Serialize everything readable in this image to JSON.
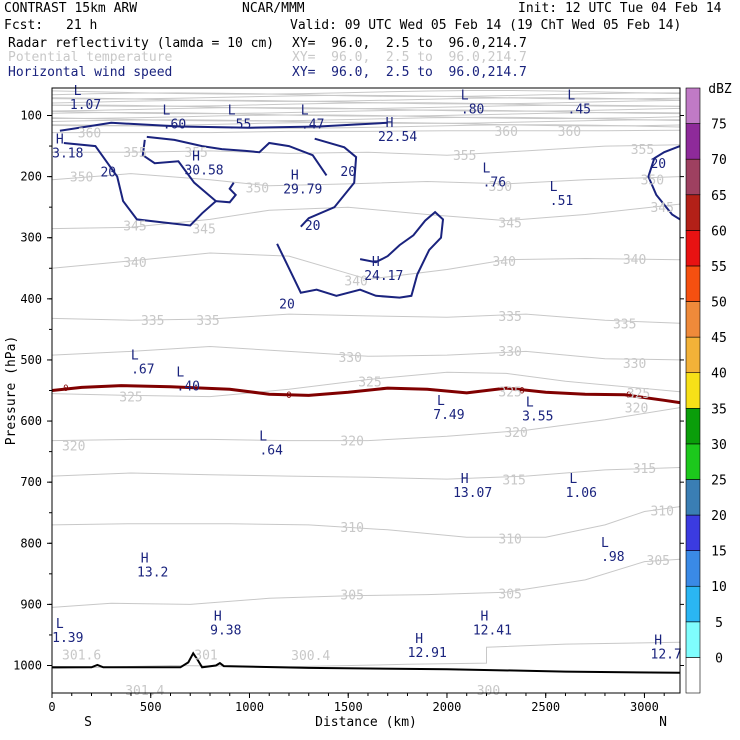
{
  "header": {
    "title": "CONTRAST 15km ARW",
    "org": "NCAR/MMM",
    "init": "Init: 12 UTC Tue 04 Feb 14",
    "fcst_label": "Fcst:",
    "fcst_value": "21 h",
    "valid": "Valid: 09 UTC Wed 05 Feb 14 (19 ChT Wed 05 Feb 14)",
    "fields": [
      {
        "name": "Radar reflectivity (lamda = 10 cm)",
        "xy": "XY=  96.0,  2.5 to  96.0,214.7",
        "color": "#000000"
      },
      {
        "name": "Potential temperature",
        "xy": "XY=  96.0,  2.5 to  96.0,214.7",
        "color": "#c8c8c8"
      },
      {
        "name": "Horizontal wind speed",
        "xy": "XY=  96.0,  2.5 to  96.0,214.7",
        "color": "#1a237e"
      }
    ]
  },
  "chart_data": {
    "type": "contour",
    "xlabel": "Distance (km)",
    "ylabel": "Pressure (hPa)",
    "xlim": [
      0,
      3180
    ],
    "ylim": [
      1045,
      55
    ],
    "x_ticks": [
      0,
      500,
      1000,
      1500,
      2000,
      2500,
      3000
    ],
    "y_ticks": [
      100,
      200,
      300,
      400,
      500,
      600,
      700,
      800,
      900,
      1000
    ],
    "x_end_labels": {
      "left": "S",
      "right": "N"
    },
    "colorbar": {
      "unit": "dBZ",
      "levels": [
        0,
        5,
        10,
        15,
        20,
        25,
        30,
        35,
        40,
        45,
        50,
        55,
        60,
        65,
        70,
        75
      ],
      "colors": [
        "#ffffff",
        "#7ffdfd",
        "#2ab6f3",
        "#3a8ae6",
        "#3b3be0",
        "#3a7eb4",
        "#1cc81c",
        "#0a9e0a",
        "#f7e018",
        "#f3b238",
        "#ef8a3a",
        "#f55010",
        "#e81212",
        "#b32018",
        "#9e4060",
        "#8e2a9a",
        "#c07ac6"
      ]
    },
    "theta_contours": {
      "levels": [
        300,
        305,
        310,
        315,
        320,
        325,
        330,
        335,
        340,
        345,
        350,
        355,
        360
      ],
      "color": "#c8c8c8",
      "labels": [
        {
          "v": "360",
          "x": 190,
          "p": 128
        },
        {
          "v": "360",
          "x": 2300,
          "p": 125
        },
        {
          "v": "360",
          "x": 2620,
          "p": 125
        },
        {
          "v": "355",
          "x": 420,
          "p": 160
        },
        {
          "v": "355",
          "x": 730,
          "p": 160
        },
        {
          "v": "355",
          "x": 2090,
          "p": 165
        },
        {
          "v": "355",
          "x": 2990,
          "p": 155
        },
        {
          "v": "350",
          "x": 150,
          "p": 200
        },
        {
          "v": "350",
          "x": 1040,
          "p": 218
        },
        {
          "v": "350",
          "x": 2270,
          "p": 215
        },
        {
          "v": "350",
          "x": 3040,
          "p": 205
        },
        {
          "v": "345",
          "x": 420,
          "p": 280
        },
        {
          "v": "345",
          "x": 770,
          "p": 285
        },
        {
          "v": "345",
          "x": 2320,
          "p": 275
        },
        {
          "v": "345",
          "x": 3090,
          "p": 250
        },
        {
          "v": "340",
          "x": 420,
          "p": 340
        },
        {
          "v": "340",
          "x": 1540,
          "p": 370
        },
        {
          "v": "340",
          "x": 2290,
          "p": 338
        },
        {
          "v": "340",
          "x": 2950,
          "p": 335
        },
        {
          "v": "335",
          "x": 510,
          "p": 435
        },
        {
          "v": "335",
          "x": 790,
          "p": 435
        },
        {
          "v": "335",
          "x": 2320,
          "p": 428
        },
        {
          "v": "335",
          "x": 2900,
          "p": 440
        },
        {
          "v": "330",
          "x": 1510,
          "p": 495
        },
        {
          "v": "330",
          "x": 2320,
          "p": 485
        },
        {
          "v": "330",
          "x": 2950,
          "p": 505
        },
        {
          "v": "325",
          "x": 1610,
          "p": 535
        },
        {
          "v": "325",
          "x": 2320,
          "p": 552
        },
        {
          "v": "325",
          "x": 2970,
          "p": 554
        },
        {
          "v": "325",
          "x": 400,
          "p": 560
        },
        {
          "v": "320",
          "x": 110,
          "p": 640
        },
        {
          "v": "320",
          "x": 1520,
          "p": 632
        },
        {
          "v": "320",
          "x": 2350,
          "p": 618
        },
        {
          "v": "320",
          "x": 2960,
          "p": 578
        },
        {
          "v": "315",
          "x": 2340,
          "p": 696
        },
        {
          "v": "315",
          "x": 3000,
          "p": 677
        },
        {
          "v": "310",
          "x": 1520,
          "p": 773
        },
        {
          "v": "310",
          "x": 2320,
          "p": 792
        },
        {
          "v": "310",
          "x": 3090,
          "p": 746
        },
        {
          "v": "305",
          "x": 1520,
          "p": 884
        },
        {
          "v": "305",
          "x": 2320,
          "p": 882
        },
        {
          "v": "305",
          "x": 3070,
          "p": 827
        },
        {
          "v": "301.6",
          "x": 150,
          "p": 982
        },
        {
          "v": "301",
          "x": 780,
          "p": 982
        },
        {
          "v": "300.4",
          "x": 1310,
          "p": 983
        },
        {
          "v": "301.4",
          "x": 470,
          "p": 1040
        },
        {
          "v": "300",
          "x": 2210,
          "p": 1040
        }
      ]
    },
    "wind_contours": {
      "levels": [
        20
      ],
      "color": "#1a237e",
      "labels": [
        {
          "v": "20",
          "x": 285,
          "p": 192
        },
        {
          "v": "20",
          "x": 1500,
          "p": 191
        },
        {
          "v": "20",
          "x": 1320,
          "p": 279
        },
        {
          "v": "20",
          "x": 1190,
          "p": 408
        },
        {
          "v": "20",
          "x": 3070,
          "p": 178
        }
      ],
      "extrema": [
        {
          "t": "L",
          "v": "1.07",
          "x": 170,
          "p": 73
        },
        {
          "t": "L",
          "v": ".60",
          "x": 620,
          "p": 105
        },
        {
          "t": "L",
          "v": ".55",
          "x": 950,
          "p": 105
        },
        {
          "t": "L",
          "v": ".47",
          "x": 1320,
          "p": 105
        },
        {
          "t": "H",
          "v": "22.54",
          "x": 1750,
          "p": 125
        },
        {
          "t": "L",
          "v": ".80",
          "x": 2130,
          "p": 80
        },
        {
          "t": "L",
          "v": ".45",
          "x": 2670,
          "p": 80
        },
        {
          "t": "H",
          "v": "3.18",
          "x": 80,
          "p": 152
        },
        {
          "t": "H",
          "v": "30.58",
          "x": 770,
          "p": 180
        },
        {
          "t": "H",
          "v": "29.79",
          "x": 1270,
          "p": 211
        },
        {
          "t": "L",
          "v": ".76",
          "x": 2240,
          "p": 200
        },
        {
          "t": "L",
          "v": ".51",
          "x": 2580,
          "p": 230
        },
        {
          "t": "H",
          "v": "24.17",
          "x": 1680,
          "p": 353
        },
        {
          "t": "L",
          "v": ".67",
          "x": 460,
          "p": 506
        },
        {
          "t": "L",
          "v": ".40",
          "x": 690,
          "p": 534
        },
        {
          "t": "L",
          "v": "7.49",
          "x": 2010,
          "p": 580
        },
        {
          "t": "L",
          "v": "3.55",
          "x": 2460,
          "p": 583
        },
        {
          "t": "L",
          "v": ".64",
          "x": 1110,
          "p": 638
        },
        {
          "t": "H",
          "v": "13.07",
          "x": 2130,
          "p": 708
        },
        {
          "t": "L",
          "v": "1.06",
          "x": 2680,
          "p": 708
        },
        {
          "t": "L",
          "v": ".98",
          "x": 2840,
          "p": 813
        },
        {
          "t": "H",
          "v": "13.2",
          "x": 510,
          "p": 838
        },
        {
          "t": "H",
          "v": "9.38",
          "x": 880,
          "p": 933
        },
        {
          "t": "H",
          "v": "12.41",
          "x": 2230,
          "p": 933
        },
        {
          "t": "H",
          "v": "12.91",
          "x": 1900,
          "p": 970
        },
        {
          "t": "L",
          "v": "1.39",
          "x": 80,
          "p": 945
        },
        {
          "t": "H",
          "v": "12.7",
          "x": 3110,
          "p": 972
        }
      ]
    },
    "reflectivity_contour": {
      "level_label": "0",
      "color": "#800000"
    },
    "terrain": {
      "color": "#000000"
    }
  }
}
